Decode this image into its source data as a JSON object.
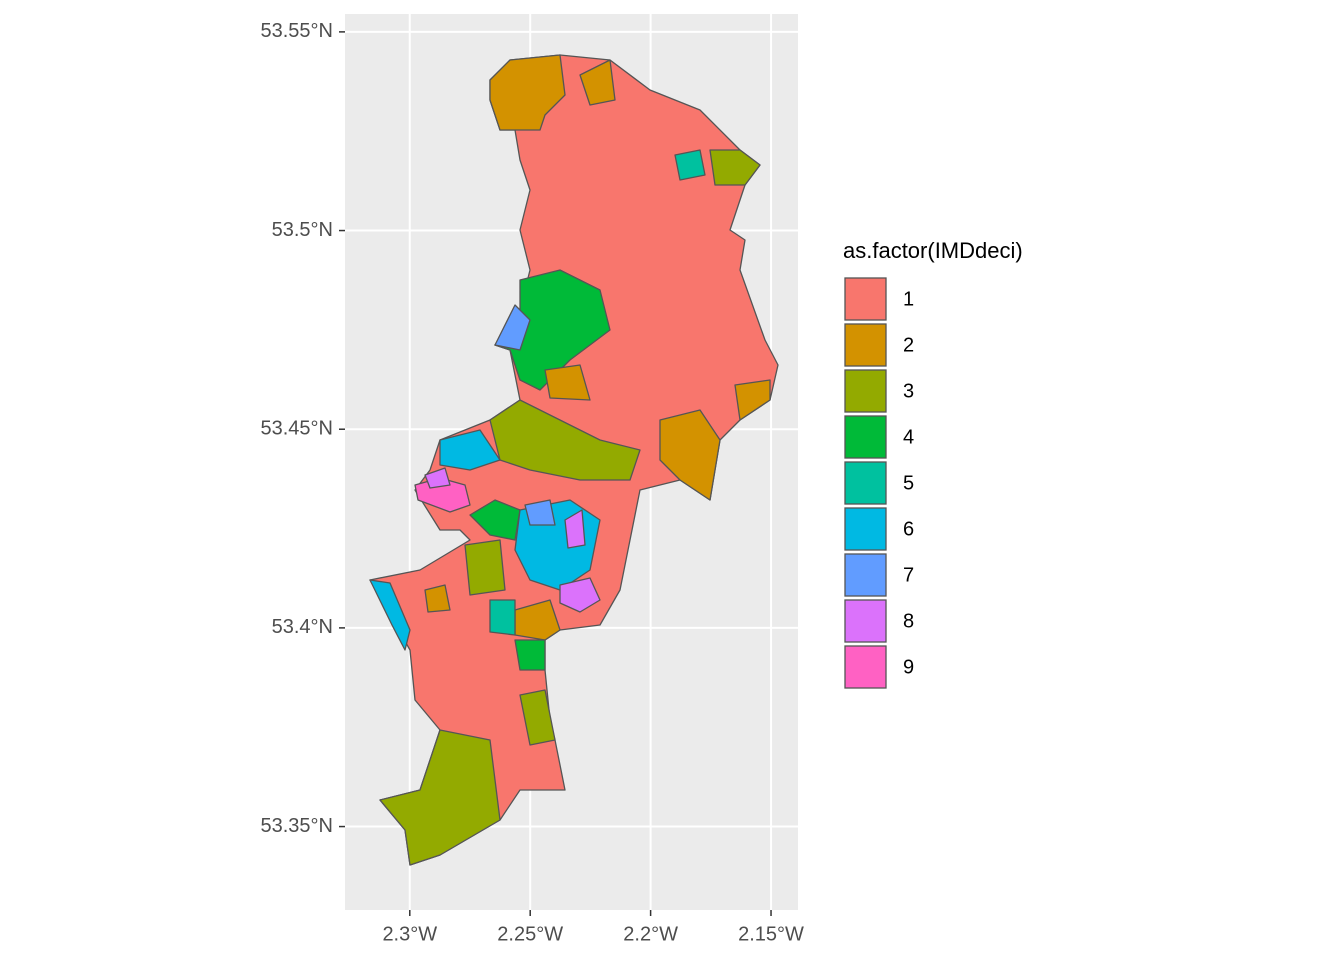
{
  "map": {
    "xlim": [
      -2.3269,
      -2.1388
    ],
    "ylim": [
      53.329,
      53.5545
    ],
    "x_axis": {
      "ticks": [
        {
          "value": -2.3,
          "label": "2.3°W"
        },
        {
          "value": -2.25,
          "label": "2.25°W"
        },
        {
          "value": -2.2,
          "label": "2.2°W"
        },
        {
          "value": -2.15,
          "label": "2.15°W"
        }
      ]
    },
    "y_axis": {
      "ticks": [
        {
          "value": 53.35,
          "label": "53.35°N"
        },
        {
          "value": 53.4,
          "label": "53.4°N"
        },
        {
          "value": 53.45,
          "label": "53.45°N"
        },
        {
          "value": 53.5,
          "label": "53.5°N"
        },
        {
          "value": 53.55,
          "label": "53.55°N"
        }
      ]
    },
    "legend": {
      "title": "as.factor(IMDdeci)",
      "items": [
        {
          "label": "1",
          "color": "#F8766D"
        },
        {
          "label": "2",
          "color": "#D39200"
        },
        {
          "label": "3",
          "color": "#93AA00"
        },
        {
          "label": "4",
          "color": "#00BA38"
        },
        {
          "label": "5",
          "color": "#00C19F"
        },
        {
          "label": "6",
          "color": "#00B9E3"
        },
        {
          "label": "7",
          "color": "#619CFF"
        },
        {
          "label": "8",
          "color": "#DB72FB"
        },
        {
          "label": "9",
          "color": "#FF61C3"
        }
      ]
    }
  }
}
